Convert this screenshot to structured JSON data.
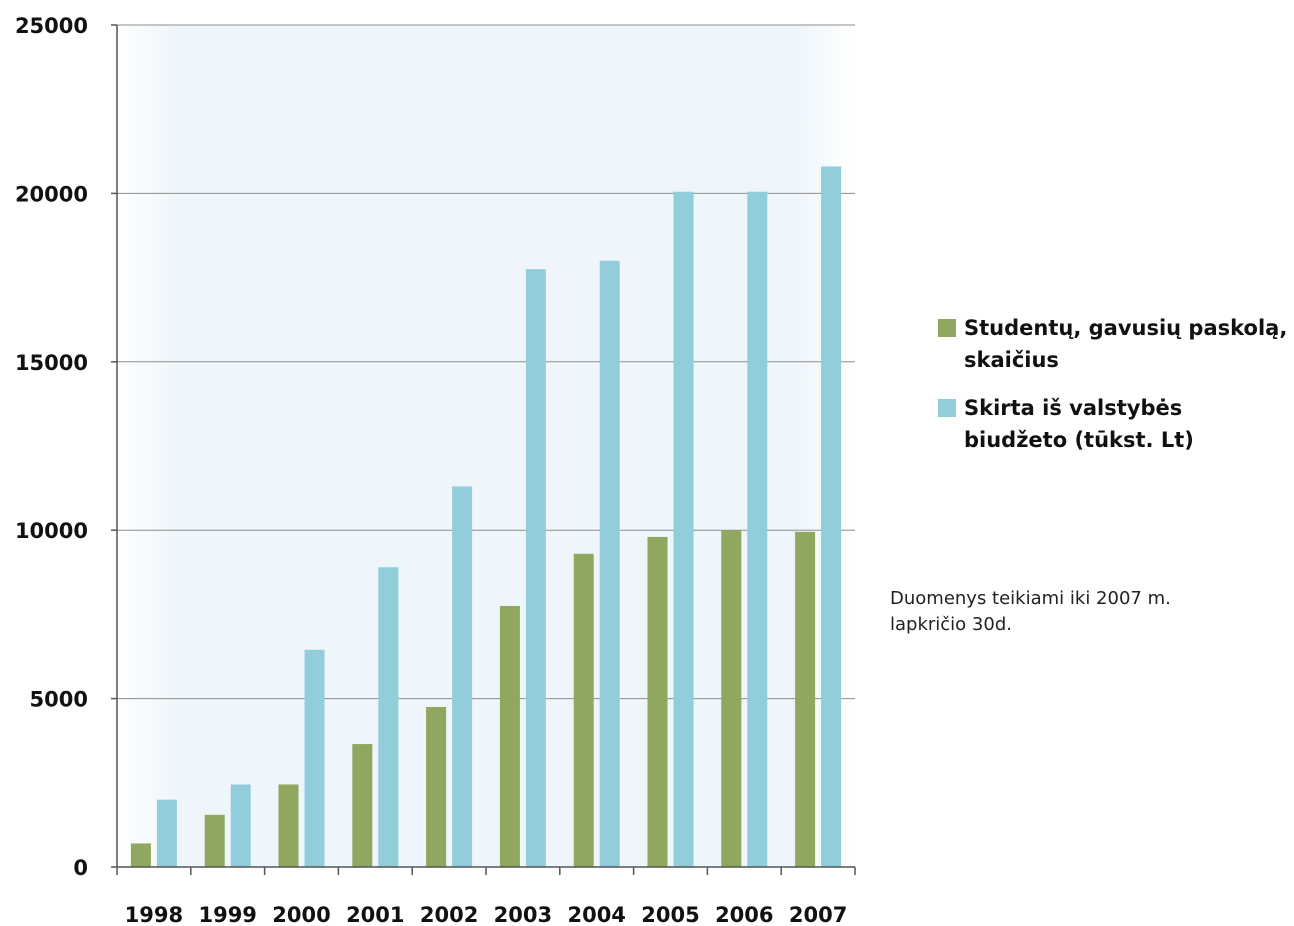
{
  "chart_data": {
    "type": "bar",
    "categories": [
      "1998",
      "1999",
      "2000",
      "2001",
      "2002",
      "2003",
      "2004",
      "2005",
      "2006",
      "2007"
    ],
    "series": [
      {
        "name": "Studentų, gavusių paskolą, skaičius",
        "color": "#8fa75e",
        "values": [
          700,
          1550,
          2450,
          3650,
          4750,
          7750,
          9300,
          9800,
          10000,
          9950
        ]
      },
      {
        "name": "Skirta iš valstybės biudžeto (tūkst. Lt)",
        "color": "#92cddc",
        "values": [
          2000,
          2450,
          6450,
          8900,
          11300,
          17750,
          18000,
          20050,
          20050,
          20800
        ]
      }
    ],
    "ylim": [
      0,
      25000
    ],
    "yticks": [
      "0",
      "5000",
      "10000",
      "15000",
      "20000",
      "25000"
    ],
    "grid": true,
    "legend_position": "right",
    "plot_background": "#eef6fb"
  },
  "note": "Duomenys teikiami iki 2007 m. lapkričio 30d."
}
